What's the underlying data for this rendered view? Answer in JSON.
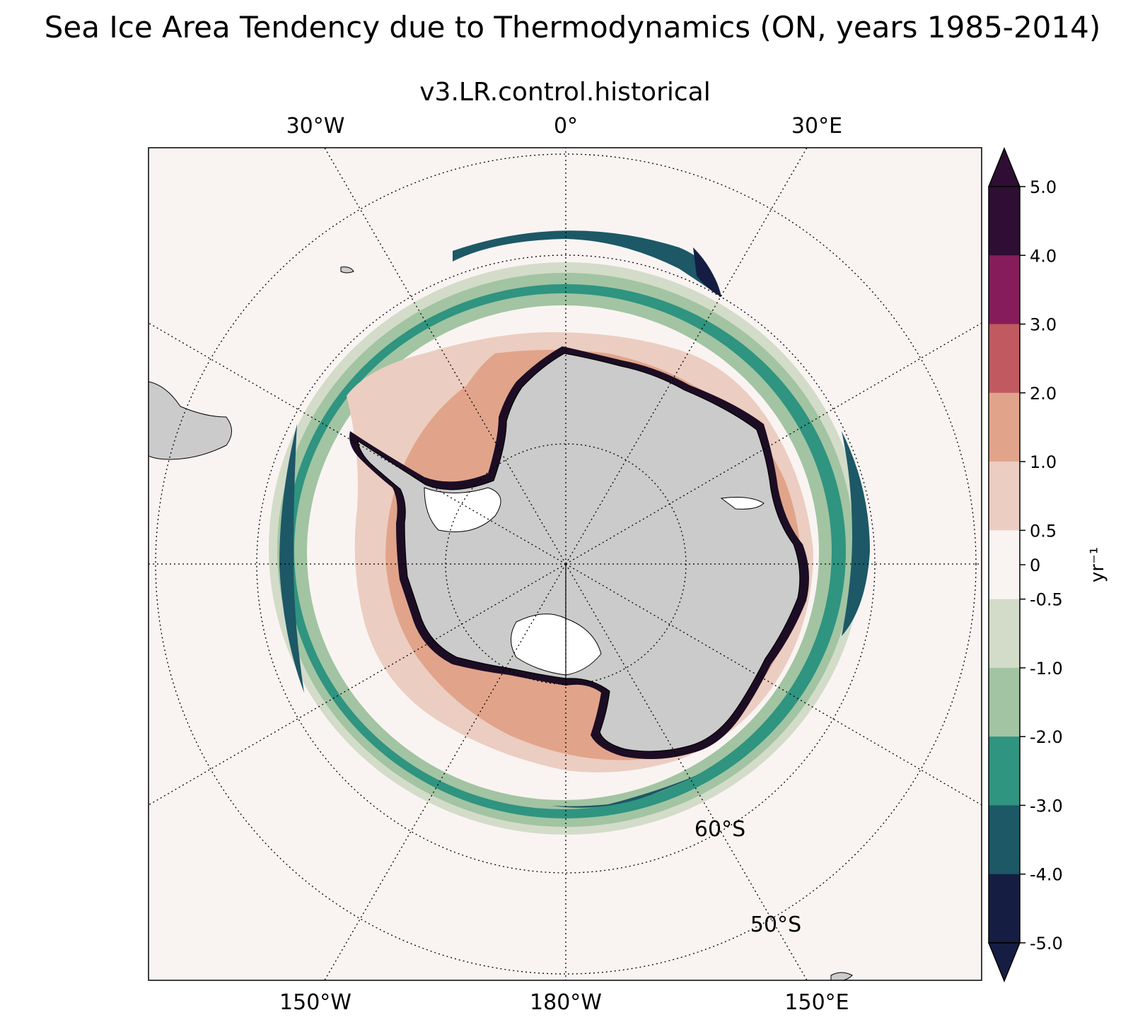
{
  "figure": {
    "title": "Sea Ice Area Tendency due to Thermodynamics (ON, years 1985-2014)",
    "subtitle": "v3.LR.control.historical"
  },
  "map": {
    "projection": "south-polar-stereographic",
    "longitude_labels_top": [
      "30°W",
      "0°",
      "30°E"
    ],
    "longitude_labels_bottom": [
      "150°W",
      "180°W",
      "150°E"
    ],
    "latitude_labels": [
      "60°S",
      "50°S"
    ],
    "colors": {
      "land": "#cbcbcb",
      "ocean_background": "#f9f4f2",
      "coastline": "#000000"
    }
  },
  "colorbar": {
    "label": "yr⁻¹",
    "tick_labels": [
      "5.0",
      "4.0",
      "3.0",
      "2.0",
      "1.0",
      "0.5",
      "0",
      "-0.5",
      "-1.0",
      "-2.0",
      "-3.0",
      "-4.0",
      "-5.0"
    ],
    "bins": [
      {
        "range": "4.0 to 5.0",
        "color": "#2e0f33"
      },
      {
        "range": "3.0 to 4.0",
        "color": "#861d5a"
      },
      {
        "range": "2.0 to 3.0",
        "color": "#c05a60"
      },
      {
        "range": "1.0 to 2.0",
        "color": "#e1a48a"
      },
      {
        "range": "0.5 to 1.0",
        "color": "#eccdc1"
      },
      {
        "range": "-0.5 to 0.5",
        "color": "#f9f4f2"
      },
      {
        "range": "-1.0 to -0.5",
        "color": "#d3dcc9"
      },
      {
        "range": "-2.0 to -1.0",
        "color": "#a2c4a2"
      },
      {
        "range": "-3.0 to -2.0",
        "color": "#2f9480"
      },
      {
        "range": "-4.0 to -3.0",
        "color": "#1c5866"
      },
      {
        "range": "-5.0 to -4.0",
        "color": "#151e42"
      }
    ],
    "extend": "both"
  }
}
